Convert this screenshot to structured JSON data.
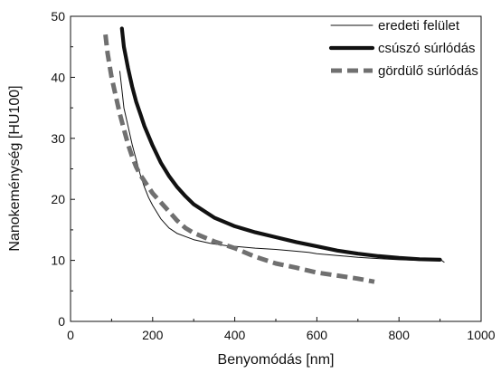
{
  "chart_data": {
    "type": "line",
    "xlabel": "Benyomódás [nm]",
    "ylabel": "Nanokeménység [HU100]",
    "xlim": [
      0,
      1000
    ],
    "ylim": [
      0,
      50
    ],
    "x_ticks": [
      0,
      200,
      400,
      600,
      800,
      1000
    ],
    "y_ticks": [
      0,
      10,
      20,
      30,
      40,
      50
    ],
    "x_tick_labels": [
      "0",
      "200",
      "400",
      "600",
      "800",
      "1000"
    ],
    "y_tick_labels": [
      "0",
      "10",
      "20",
      "30",
      "40",
      "50"
    ],
    "grid": false,
    "legend_position": "top-right",
    "series": [
      {
        "name": "eredeti felület",
        "color": "#111111",
        "style": "thin-solid",
        "x": [
          120,
          125,
          130,
          140,
          150,
          160,
          170,
          180,
          190,
          200,
          220,
          240,
          260,
          280,
          300,
          320,
          340,
          360,
          380,
          400,
          450,
          500,
          550,
          580,
          600,
          650,
          700,
          750,
          800,
          850,
          900,
          910
        ],
        "y": [
          41,
          38,
          35,
          32,
          29,
          26.5,
          24,
          22,
          20.3,
          19,
          16.8,
          15.3,
          14.4,
          13.9,
          13.4,
          13.1,
          12.8,
          12.6,
          12.4,
          12.3,
          12.0,
          11.8,
          11.5,
          11.3,
          11.1,
          10.8,
          10.5,
          10.3,
          10.1,
          10.0,
          10.2,
          9.7
        ]
      },
      {
        "name": "csúszó súrlódás",
        "color": "#111111",
        "style": "thick-solid",
        "x": [
          125,
          130,
          140,
          150,
          160,
          170,
          180,
          200,
          220,
          240,
          260,
          280,
          300,
          350,
          400,
          450,
          500,
          550,
          600,
          650,
          700,
          750,
          800,
          850,
          900
        ],
        "y": [
          48,
          45,
          41.5,
          38.5,
          36,
          34,
          32,
          28.8,
          26,
          23.8,
          22,
          20.5,
          19.2,
          17,
          15.6,
          14.6,
          13.8,
          13.0,
          12.3,
          11.6,
          11.1,
          10.7,
          10.4,
          10.2,
          10.1
        ]
      },
      {
        "name": "gördülő súrlódás",
        "color": "#707070",
        "style": "thick-dashed",
        "x": [
          85,
          90,
          95,
          100,
          110,
          120,
          130,
          140,
          150,
          160,
          170,
          180,
          200,
          220,
          240,
          260,
          280,
          300,
          350,
          400,
          450,
          500,
          550,
          600,
          650,
          700,
          740
        ],
        "y": [
          47,
          44,
          42,
          40,
          37,
          34,
          31.5,
          29,
          27,
          25.3,
          24,
          23,
          21,
          19.5,
          18,
          16.5,
          15.3,
          14.5,
          13.1,
          12.0,
          10.6,
          9.5,
          8.8,
          8.0,
          7.5,
          7.0,
          6.5
        ]
      }
    ]
  }
}
